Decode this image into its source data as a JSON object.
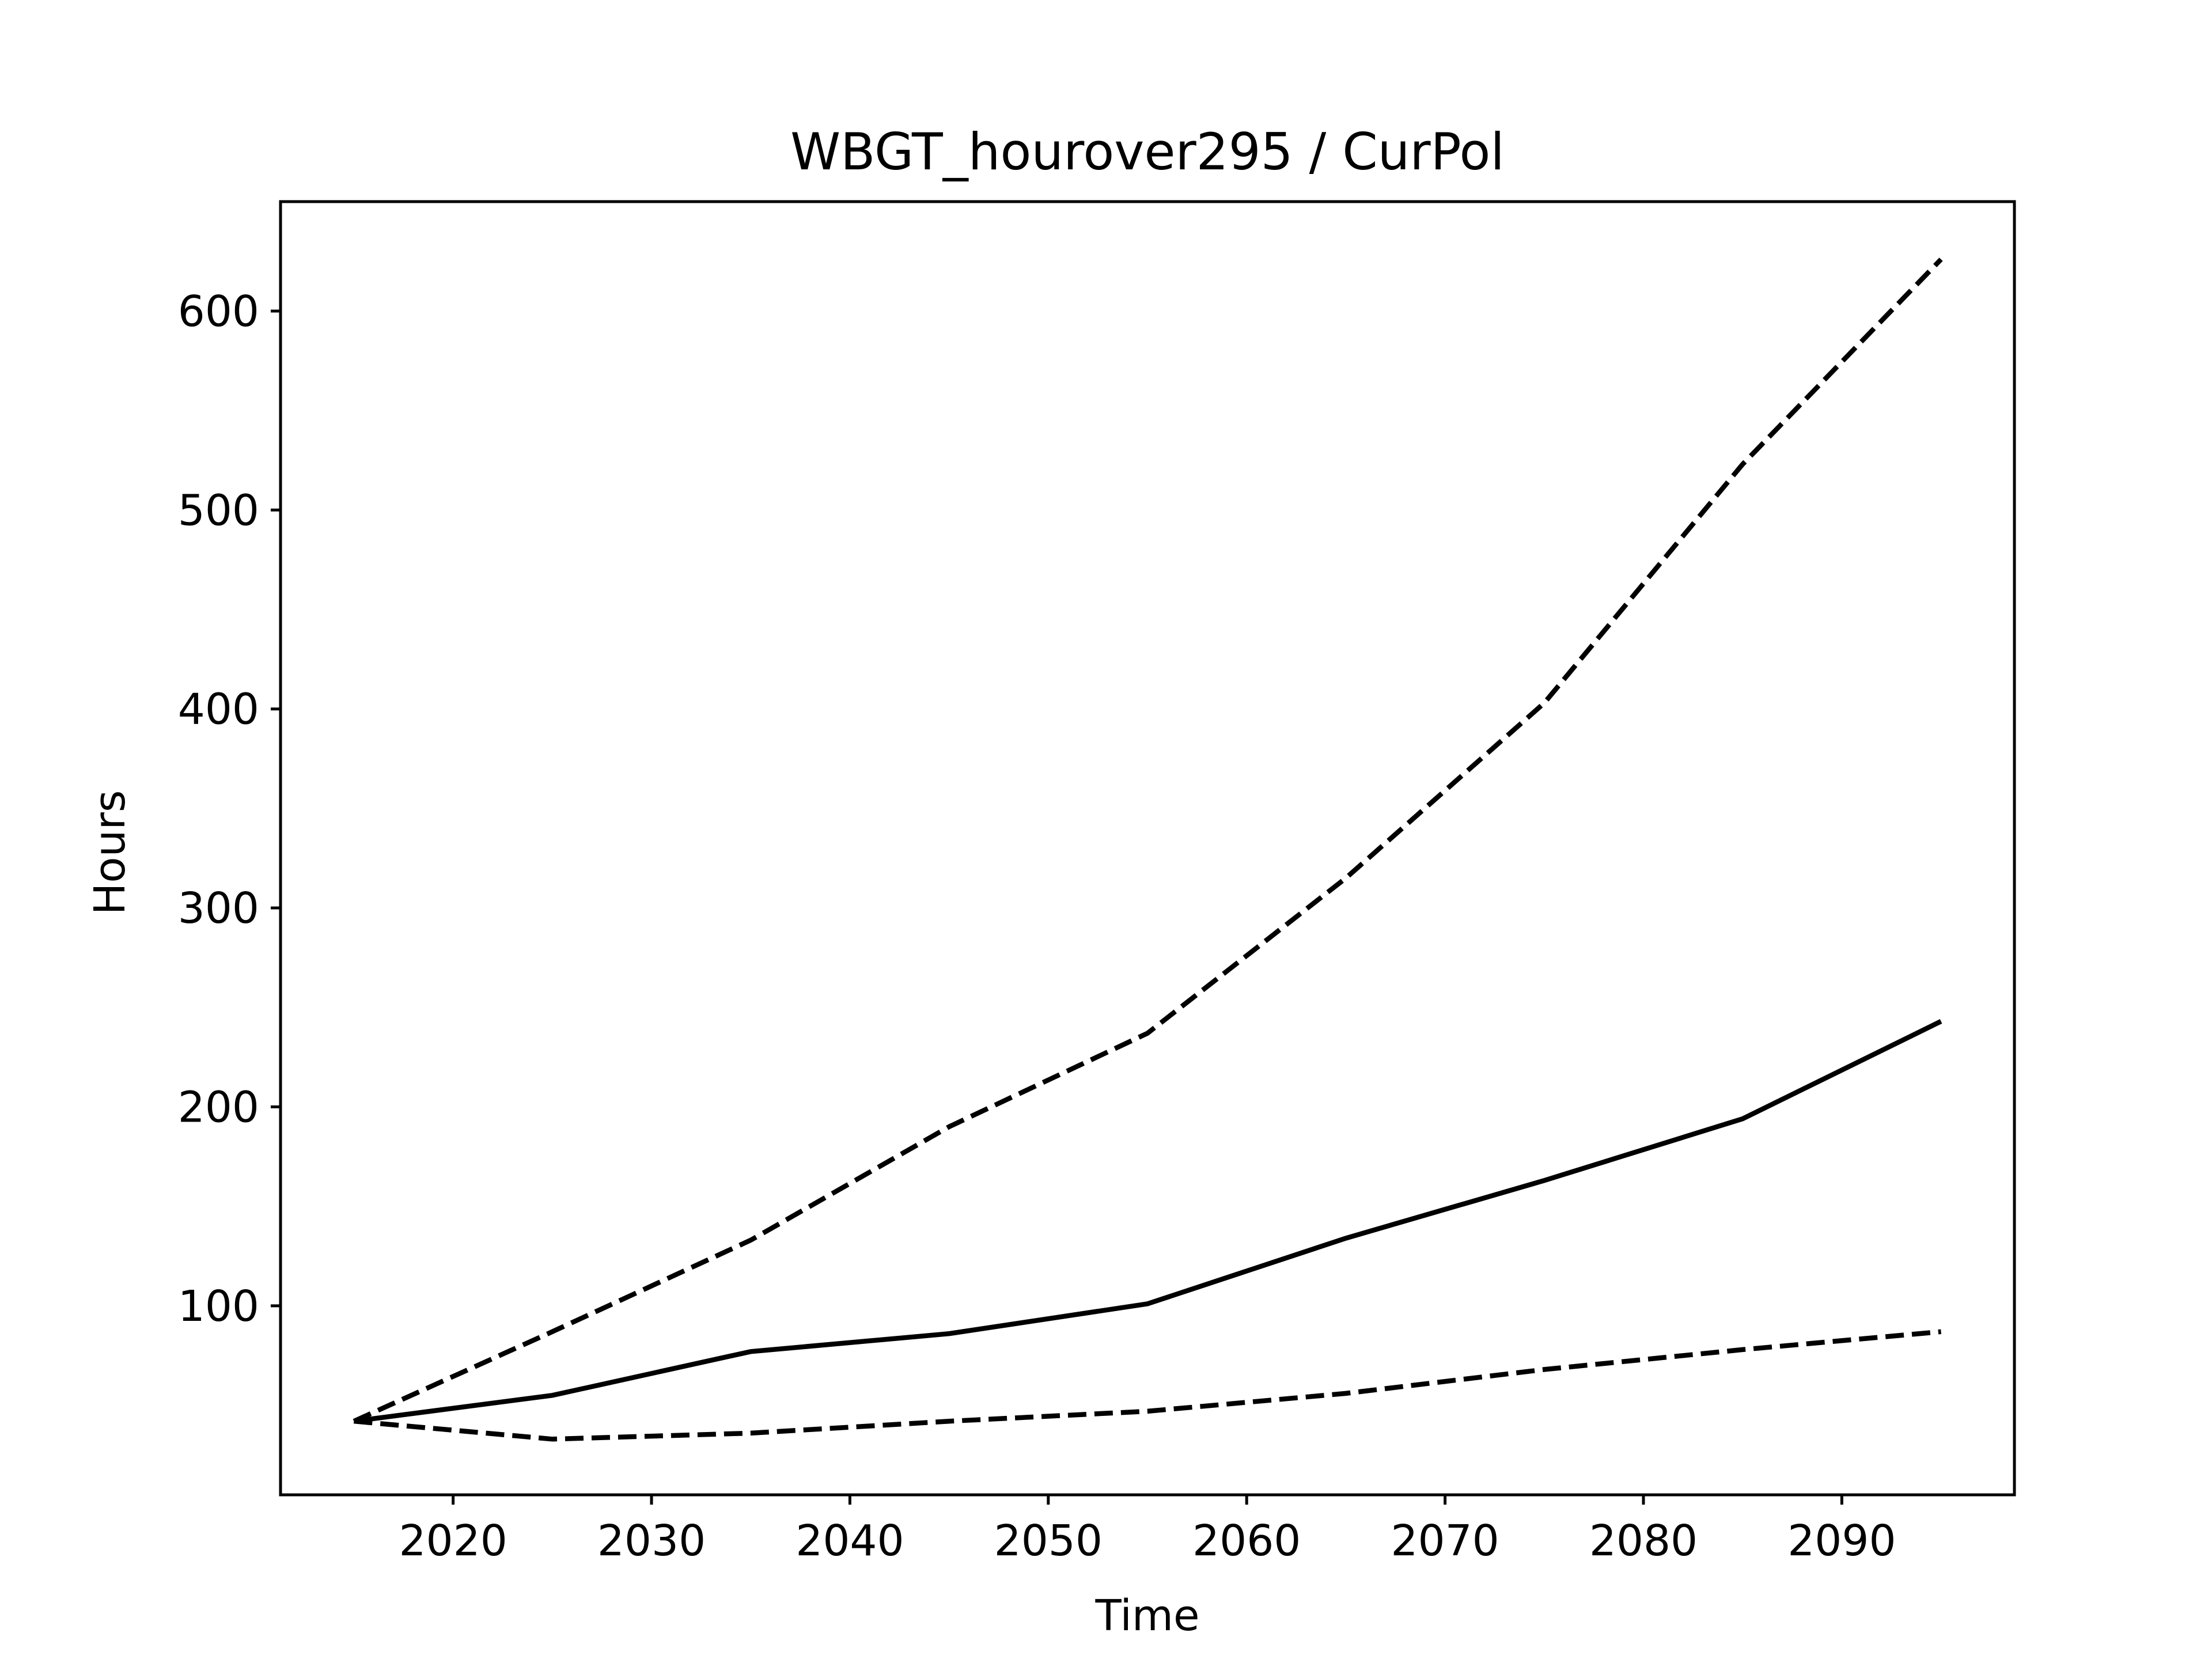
{
  "chart_data": {
    "type": "line",
    "title": "WBGT_hourover295 / CurPol",
    "xlabel": "Time",
    "ylabel": "Hours",
    "xlim": [
      2011.3,
      2098.7
    ],
    "ylim": [
      5,
      655
    ],
    "grid": false,
    "x": [
      2015,
      2025,
      2035,
      2045,
      2055,
      2065,
      2075,
      2085,
      2095
    ],
    "xticks": [
      2020,
      2030,
      2040,
      2050,
      2060,
      2070,
      2080,
      2090
    ],
    "xtick_labels": [
      "2020",
      "2030",
      "2040",
      "2050",
      "2060",
      "2070",
      "2080",
      "2090"
    ],
    "yticks": [
      100,
      200,
      300,
      400,
      500,
      600
    ],
    "ytick_labels": [
      "100",
      "200",
      "300",
      "400",
      "500",
      "600"
    ],
    "series": [
      {
        "style": "dashed",
        "color": "#000000",
        "values": [
          42,
          87,
          133,
          190,
          237,
          315,
          403,
          523,
          626
        ]
      },
      {
        "style": "solid",
        "color": "#000000",
        "values": [
          42,
          55,
          77,
          86,
          101,
          134,
          163,
          194,
          243
        ]
      },
      {
        "style": "dashed",
        "color": "#000000",
        "values": [
          42,
          33,
          36,
          42,
          47,
          56,
          68,
          78,
          87
        ]
      }
    ]
  }
}
